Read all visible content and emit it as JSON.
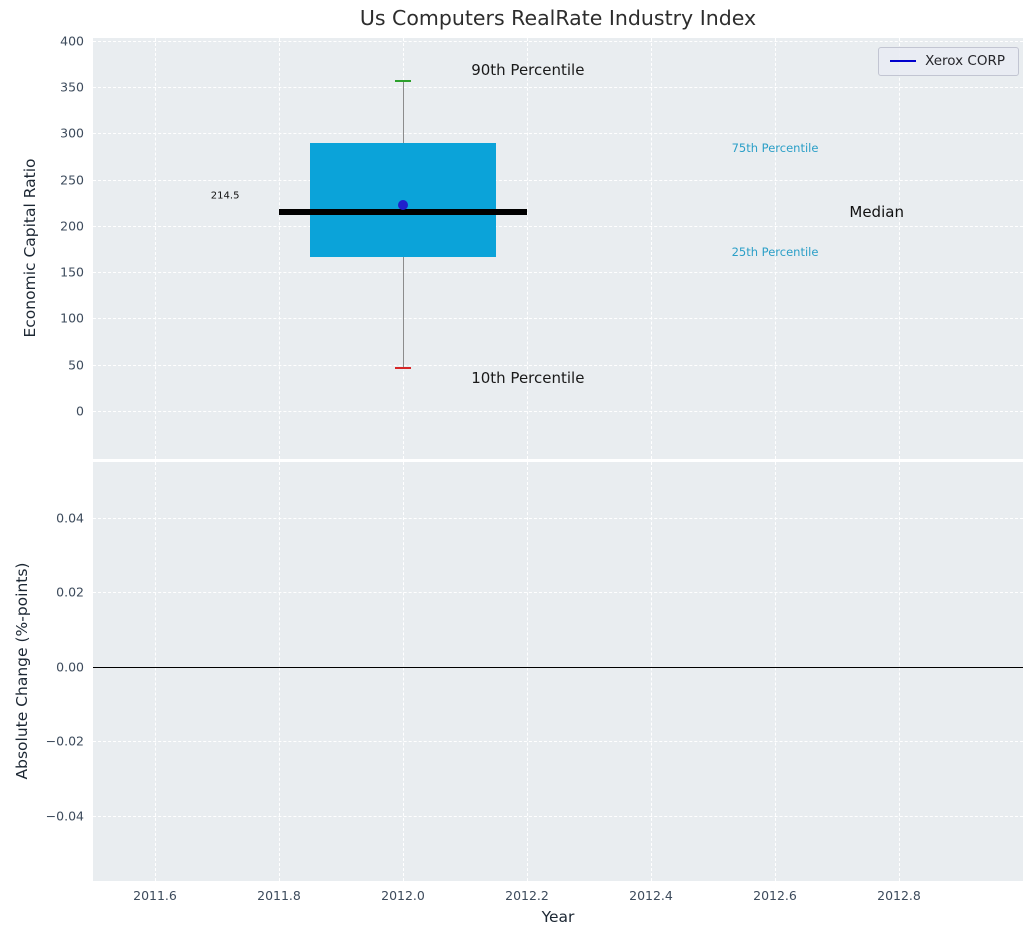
{
  "chart_data": {
    "type": "boxplot",
    "title": "Us Computers RealRate Industry Index",
    "xlabel": "Year",
    "x_lim": [
      2011.5,
      2013.0
    ],
    "x_ticks": [
      {
        "v": 2011.6,
        "label": "2011.6"
      },
      {
        "v": 2011.8,
        "label": "2011.8"
      },
      {
        "v": 2012.0,
        "label": "2012.0"
      },
      {
        "v": 2012.2,
        "label": "2012.2"
      },
      {
        "v": 2012.4,
        "label": "2012.4"
      },
      {
        "v": 2012.6,
        "label": "2012.6"
      },
      {
        "v": 2012.8,
        "label": "2012.8"
      }
    ],
    "legend": {
      "label": "Xerox CORP",
      "line_color": "#0000cd"
    },
    "panels": [
      {
        "name": "economic-capital-ratio",
        "ylabel": "Economic Capital Ratio",
        "y_lim": [
          -52,
          403
        ],
        "y_ticks": [
          {
            "v": 400,
            "label": "400"
          },
          {
            "v": 350,
            "label": "350"
          },
          {
            "v": 300,
            "label": "300"
          },
          {
            "v": 250,
            "label": "250"
          },
          {
            "v": 200,
            "label": "200"
          },
          {
            "v": 150,
            "label": "150"
          },
          {
            "v": 100,
            "label": "100"
          },
          {
            "v": 50,
            "label": "50"
          },
          {
            "v": 0,
            "label": "0"
          }
        ],
        "boxplot": {
          "x_center": 2012.0,
          "box_x_left": 2011.85,
          "box_x_right": 2012.15,
          "median_x_left": 2011.8,
          "median_x_right": 2012.2,
          "p10": 47,
          "p25": 166,
          "median": 214.5,
          "p75": 289,
          "p90": 358,
          "box_color": "#0ba3d9",
          "whisker_color": "#8c8c8c",
          "cap_top_color": "#2ca02c",
          "cap_bottom_color": "#d62728",
          "median_color": "#000000"
        },
        "company_point": {
          "label": "Xerox CORP",
          "x": 2012.0,
          "y": 222,
          "color": "#2020cc"
        },
        "annotations": [
          {
            "text": "214.5",
            "x": 2011.69,
            "y": 232,
            "color": "#111111",
            "size": 10,
            "weight": "normal"
          },
          {
            "text": "90th Percentile",
            "x": 2012.11,
            "y": 368,
            "color": "#1a1a1a",
            "size": 15,
            "weight": "normal"
          },
          {
            "text": "10th Percentile",
            "x": 2012.11,
            "y": 36,
            "color": "#1a1a1a",
            "size": 15,
            "weight": "normal"
          },
          {
            "text": "75th Percentile",
            "x": 2012.53,
            "y": 284,
            "color": "#2b9fc7",
            "size": 11.5,
            "weight": "normal"
          },
          {
            "text": "25th Percentile",
            "x": 2012.53,
            "y": 172,
            "color": "#2b9fc7",
            "size": 11.5,
            "weight": "normal"
          },
          {
            "text": "Median",
            "x": 2012.72,
            "y": 215,
            "color": "#111111",
            "size": 15,
            "weight": "normal"
          }
        ]
      },
      {
        "name": "absolute-change",
        "ylabel": "Absolute Change (%-points)",
        "y_lim": [
          -0.0575,
          0.055
        ],
        "y_ticks": [
          {
            "v": 0.04,
            "label": "0.04"
          },
          {
            "v": 0.02,
            "label": "0.02"
          },
          {
            "v": 0.0,
            "label": "0.00"
          },
          {
            "v": -0.02,
            "label": "−0.02"
          },
          {
            "v": -0.04,
            "label": "−0.04"
          }
        ],
        "zero_line": {
          "y": 0,
          "color": "#000000"
        }
      }
    ]
  }
}
